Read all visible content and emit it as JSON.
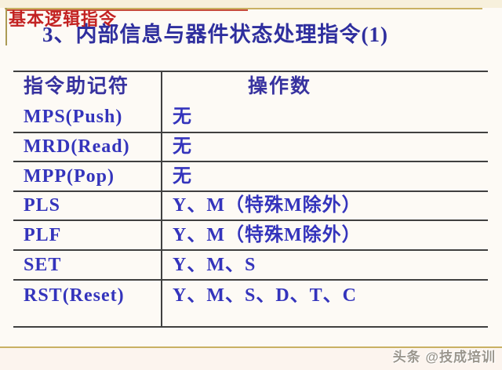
{
  "slide": {
    "eyebrow": "基本逻辑指令",
    "title": "3、内部信息与器件状态处理指令(1)",
    "watermark": "头条 @技成培训"
  },
  "table": {
    "col_headers": [
      "指令助记符",
      "操作数"
    ],
    "rows": [
      {
        "mnemonic": "MPS(Push)",
        "operand": "无"
      },
      {
        "mnemonic": "MRD(Read)",
        "operand": "无"
      },
      {
        "mnemonic": "MPP(Pop)",
        "operand": "无"
      },
      {
        "mnemonic": "PLS",
        "operand": "Y、M（特殊M除外）"
      },
      {
        "mnemonic": "PLF",
        "operand": "Y、M（特殊M除外）"
      },
      {
        "mnemonic": "SET",
        "operand": "Y、M、S"
      },
      {
        "mnemonic": "RST(Reset)",
        "operand": "Y、M、S、D、T、C"
      }
    ]
  },
  "colors": {
    "accent_red": "#c32222",
    "title_blue": "#2f2f9e",
    "cell_blue": "#3434bc",
    "gold_line": "#c9b163",
    "table_line": "#404040",
    "watermark_gray": "#9a958c"
  }
}
